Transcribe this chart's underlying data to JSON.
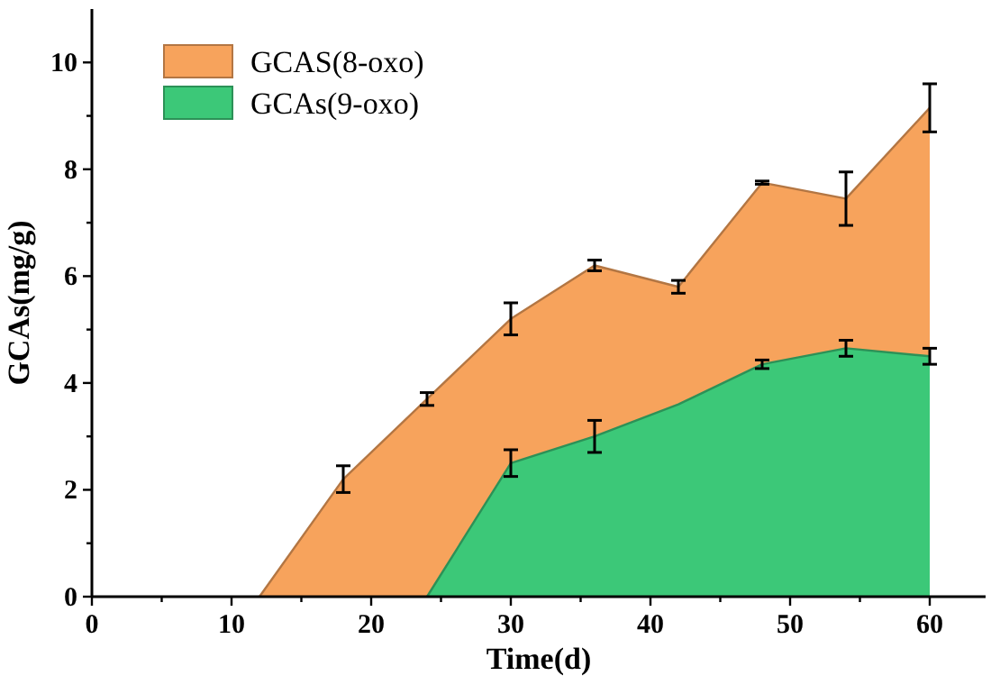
{
  "chart_data": {
    "type": "area",
    "xlabel": "Time(d)",
    "ylabel": "GCAs(mg/g)",
    "xlim": [
      0,
      64
    ],
    "ylim": [
      0,
      11
    ],
    "xticks": [
      0,
      {
        "value": 5,
        "label": null
      },
      10,
      {
        "value": 15,
        "label": null
      },
      20,
      {
        "value": 25,
        "label": null
      },
      30,
      {
        "value": 35,
        "label": null
      },
      40,
      {
        "value": 45,
        "label": null
      },
      50,
      {
        "value": 55,
        "label": null
      },
      60
    ],
    "yticks": [
      0,
      {
        "value": 1,
        "label": null
      },
      2,
      {
        "value": 3,
        "label": null
      },
      4,
      {
        "value": 5,
        "label": null
      },
      6,
      {
        "value": 7,
        "label": null
      },
      8,
      {
        "value": 9,
        "label": null
      },
      10
    ],
    "legend": "top left",
    "grid": false,
    "stacked": false,
    "series": [
      {
        "name": "GCAS(8-oxo)",
        "color": "#f7a35c",
        "x": [
          12,
          18,
          24,
          30,
          36,
          42,
          48,
          54,
          60
        ],
        "values": [
          0,
          2.2,
          3.7,
          5.2,
          6.2,
          5.8,
          7.75,
          7.45,
          9.15
        ],
        "errors": [
          null,
          0.25,
          0.12,
          0.3,
          0.1,
          0.12,
          0.03,
          0.5,
          0.45
        ]
      },
      {
        "name": "GCAs(9-oxo)",
        "color": "#3cc878",
        "x": [
          24,
          30,
          36,
          42,
          48,
          54,
          60
        ],
        "values": [
          0,
          2.5,
          3.0,
          3.6,
          4.35,
          4.65,
          4.5
        ],
        "errors": [
          null,
          0.25,
          0.3,
          null,
          0.08,
          0.15,
          0.15
        ]
      }
    ]
  }
}
